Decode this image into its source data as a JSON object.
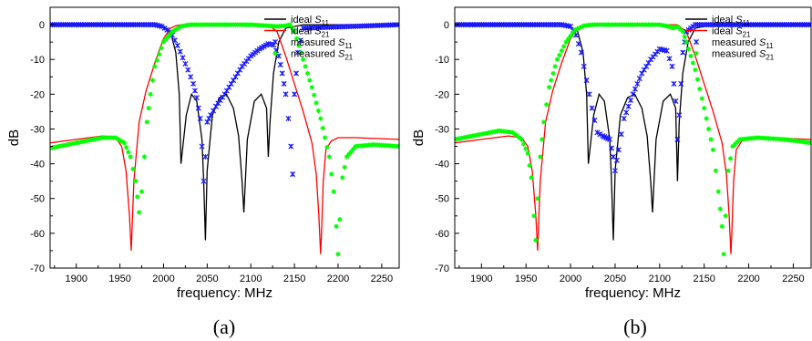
{
  "chart_data": [
    {
      "type": "line",
      "panel_label": "(a)",
      "xlabel": "frequency: MHz",
      "ylabel": "dB",
      "xlim": [
        1870,
        2270
      ],
      "ylim": [
        -70,
        5
      ],
      "xticks": [
        "1900",
        "1950",
        "2000",
        "2050",
        "2100",
        "2150",
        "2200",
        "2250"
      ],
      "yticks": [
        "0",
        "-10",
        "-20",
        "-30",
        "-40",
        "-50",
        "-60",
        "-70"
      ],
      "grid": false,
      "legend_position": "top-right",
      "series": [
        {
          "name": "ideal S11",
          "label_main": "ideal ",
          "label_sym": "S",
          "label_sub": "11",
          "style": "line",
          "color": "#000000",
          "x": [
            1870,
            1950,
            2000,
            2008,
            2014,
            2018,
            2020,
            2026,
            2032,
            2038,
            2044,
            2046,
            2048,
            2050,
            2056,
            2064,
            2072,
            2080,
            2086,
            2090,
            2092,
            2096,
            2104,
            2112,
            2118,
            2120,
            2122,
            2126,
            2132,
            2140,
            2160,
            2270
          ],
          "y": [
            0,
            0,
            -0.5,
            -2,
            -8,
            -20,
            -40,
            -26,
            -20,
            -22,
            -33,
            -45,
            -62,
            -42,
            -26,
            -21,
            -20,
            -24,
            -32,
            -45,
            -54,
            -33,
            -22,
            -20,
            -24,
            -38,
            -28,
            -14,
            -5,
            -1,
            0,
            0
          ]
        },
        {
          "name": "ideal S21",
          "label_main": "ideal ",
          "label_sym": "S",
          "label_sub": "21",
          "style": "line",
          "color": "#ff0000",
          "x": [
            1870,
            1900,
            1930,
            1945,
            1952,
            1957,
            1961,
            1963,
            1966,
            1972,
            1980,
            1990,
            2000,
            2008,
            2014,
            2020,
            2120,
            2130,
            2140,
            2150,
            2160,
            2170,
            2175,
            2178,
            2180,
            2181,
            2183,
            2186,
            2192,
            2200,
            2220,
            2270
          ],
          "y": [
            -34,
            -33,
            -32,
            -32.5,
            -35,
            -42,
            -55,
            -65,
            -45,
            -28,
            -19,
            -11,
            -4,
            -1,
            -0.3,
            0,
            0,
            -2,
            -9,
            -17,
            -25,
            -34,
            -43,
            -55,
            -66,
            -60,
            -45,
            -36,
            -33.5,
            -32.5,
            -32.5,
            -33
          ]
        },
        {
          "name": "measured S11",
          "label_main": "measured ",
          "label_sym": "S",
          "label_sub": "11",
          "style": "markers",
          "color": "#1a1aff",
          "x": [
            1870,
            1990,
            1998,
            2004,
            2010,
            2016,
            2022,
            2028,
            2034,
            2038,
            2042,
            2044,
            2046,
            2048,
            2050,
            2054,
            2060,
            2070,
            2080,
            2090,
            2100,
            2110,
            2120,
            2126,
            2132,
            2136,
            2140,
            2143,
            2146,
            2148,
            2150,
            2154,
            2160,
            2270
          ],
          "y": [
            0,
            0,
            -0.5,
            -1.5,
            -3,
            -6,
            -9.5,
            -13,
            -17,
            -21,
            -27,
            -35,
            -45,
            -38,
            -28,
            -26,
            -23.5,
            -20,
            -16,
            -12,
            -9,
            -7,
            -5.5,
            -5.8,
            -9,
            -14,
            -20,
            -27,
            -35,
            -43,
            -20,
            -8,
            -1,
            0
          ]
        },
        {
          "name": "measured S21",
          "label_main": "measured ",
          "label_sym": "S",
          "label_sub": "21",
          "style": "markers",
          "color": "#00ff00",
          "x": [
            1870,
            1900,
            1930,
            1945,
            1955,
            1962,
            1968,
            1972,
            1975,
            1978,
            1981,
            1985,
            1990,
            2000,
            2010,
            2020,
            2030,
            2100,
            2130,
            2140,
            2145,
            2150,
            2155,
            2160,
            2170,
            2180,
            2190,
            2195,
            2198,
            2200,
            2202,
            2205,
            2210,
            2220,
            2240,
            2270
          ],
          "y": [
            -35.5,
            -34,
            -32.5,
            -32.5,
            -34,
            -38,
            -45,
            -54,
            -48,
            -38,
            -28,
            -20,
            -12,
            -5,
            -2,
            -0.5,
            0,
            0,
            -0.5,
            -0.3,
            0,
            -2,
            -6,
            -10,
            -18,
            -27,
            -38,
            -48,
            -58,
            -66,
            -56,
            -44,
            -38,
            -35,
            -34.5,
            -35
          ]
        }
      ]
    },
    {
      "type": "line",
      "panel_label": "(b)",
      "xlabel": "frequency: MHz",
      "ylabel": "dB",
      "xlim": [
        1870,
        2270
      ],
      "ylim": [
        -70,
        5
      ],
      "xticks": [
        "1900",
        "1950",
        "2000",
        "2050",
        "2100",
        "2150",
        "2200",
        "2250"
      ],
      "yticks": [
        "0",
        "-10",
        "-20",
        "-30",
        "-40",
        "-50",
        "-60",
        "-70"
      ],
      "grid": false,
      "legend_position": "top-right",
      "series": [
        {
          "name": "ideal S11",
          "label_main": "ideal ",
          "label_sym": "S",
          "label_sub": "11",
          "style": "line",
          "color": "#000000",
          "x": [
            1870,
            1950,
            2000,
            2008,
            2014,
            2018,
            2020,
            2026,
            2032,
            2038,
            2044,
            2046,
            2048,
            2050,
            2056,
            2064,
            2072,
            2080,
            2086,
            2090,
            2092,
            2096,
            2104,
            2112,
            2118,
            2120,
            2122,
            2126,
            2132,
            2140,
            2160,
            2270
          ],
          "y": [
            0,
            0,
            -0.5,
            -2,
            -8,
            -20,
            -40,
            -26,
            -20,
            -22,
            -33,
            -45,
            -62,
            -42,
            -26,
            -21,
            -20,
            -24,
            -32,
            -45,
            -54,
            -33,
            -22,
            -20,
            -24,
            -45,
            -28,
            -14,
            -5,
            -1,
            0,
            0
          ]
        },
        {
          "name": "ideal S21",
          "label_main": "ideal ",
          "label_sym": "S",
          "label_sub": "21",
          "style": "line",
          "color": "#ff0000",
          "x": [
            1870,
            1900,
            1930,
            1945,
            1952,
            1957,
            1961,
            1963,
            1966,
            1972,
            1980,
            1990,
            2000,
            2008,
            2014,
            2020,
            2120,
            2130,
            2140,
            2150,
            2160,
            2170,
            2175,
            2178,
            2180,
            2181,
            2183,
            2186,
            2192,
            2200,
            2220,
            2270
          ],
          "y": [
            -34,
            -33,
            -32,
            -32.5,
            -35,
            -42,
            -55,
            -65,
            -45,
            -28,
            -19,
            -11,
            -4,
            -1,
            -0.3,
            0,
            0,
            -2,
            -9,
            -17,
            -25,
            -34,
            -43,
            -55,
            -66,
            -60,
            -45,
            -36,
            -33.5,
            -32.5,
            -32.5,
            -33
          ]
        },
        {
          "name": "measured S11",
          "label_main": "measured ",
          "label_sym": "S",
          "label_sub": "11",
          "style": "markers",
          "color": "#1a1aff",
          "x": [
            1870,
            1990,
            2000,
            2006,
            2012,
            2018,
            2024,
            2030,
            2036,
            2040,
            2044,
            2048,
            2050,
            2054,
            2060,
            2070,
            2080,
            2090,
            2100,
            2108,
            2114,
            2118,
            2120,
            2122,
            2126,
            2130,
            2140,
            2270
          ],
          "y": [
            0,
            0,
            -0.5,
            -3,
            -8,
            -16,
            -24,
            -31,
            -32,
            -32.5,
            -33,
            -38,
            -42,
            -36,
            -27,
            -20,
            -14,
            -10,
            -7,
            -7.5,
            -12,
            -22,
            -33,
            -26,
            -8,
            -2,
            0,
            0
          ]
        },
        {
          "name": "measured S21",
          "label_main": "measured ",
          "label_sym": "S",
          "label_sub": "21",
          "style": "markers",
          "color": "#00ff00",
          "x": [
            1870,
            1900,
            1920,
            1935,
            1945,
            1952,
            1956,
            1959,
            1961,
            1963,
            1966,
            1970,
            1976,
            1985,
            1995,
            2005,
            2015,
            2025,
            2100,
            2110,
            2115,
            2120,
            2126,
            2130,
            2140,
            2150,
            2160,
            2166,
            2170,
            2172,
            2174,
            2177,
            2182,
            2190,
            2210,
            2240,
            2270
          ],
          "y": [
            -33,
            -31.5,
            -30.5,
            -31,
            -33,
            -37,
            -44,
            -55,
            -62,
            -50,
            -38,
            -28,
            -18,
            -10,
            -5,
            -1.5,
            -0.3,
            0,
            0,
            -0.5,
            -1,
            -0.5,
            -2,
            -5,
            -13,
            -24,
            -36,
            -48,
            -58,
            -66,
            -55,
            -42,
            -35,
            -33,
            -32.5,
            -33,
            -34
          ]
        }
      ]
    }
  ]
}
